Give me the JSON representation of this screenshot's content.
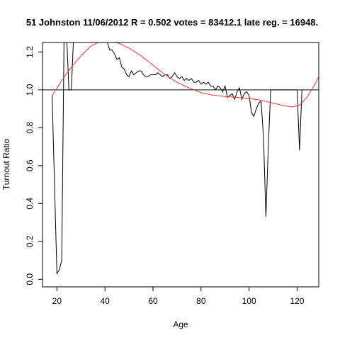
{
  "chart_data": {
    "type": "line",
    "title": "51 Johnston 11/06/2012 R = 0.502 votes = 83412.1 late reg. = 16948.",
    "xlabel": "Age",
    "ylabel": "Turnout Ratio",
    "xlim": [
      14,
      129
    ],
    "ylim": [
      -0.04,
      1.25
    ],
    "xticks": [
      20,
      40,
      60,
      80,
      100,
      120
    ],
    "yticks": [
      0.0,
      0.2,
      0.4,
      0.6,
      0.8,
      1.0,
      1.2
    ],
    "ytick_labels": [
      "0.0",
      "0.2",
      "0.4",
      "0.6",
      "0.8",
      "1.0",
      "1.2"
    ],
    "reference_line": {
      "y": 1.0,
      "color": "#000000"
    },
    "series": [
      {
        "kind": "observed",
        "color": "#000000",
        "x": [
          18,
          19,
          20,
          21,
          22,
          23,
          24,
          25,
          26,
          27,
          28,
          29,
          30,
          31,
          32,
          33,
          34,
          35,
          36,
          37,
          38,
          39,
          40,
          41,
          42,
          43,
          44,
          45,
          46,
          47,
          48,
          49,
          50,
          51,
          52,
          53,
          54,
          55,
          56,
          57,
          58,
          59,
          60,
          61,
          62,
          63,
          64,
          65,
          66,
          67,
          68,
          69,
          70,
          71,
          72,
          73,
          74,
          75,
          76,
          77,
          78,
          79,
          80,
          81,
          82,
          83,
          84,
          85,
          86,
          87,
          88,
          89,
          90,
          91,
          92,
          93,
          94,
          95,
          96,
          97,
          98,
          99,
          100,
          101,
          102,
          103,
          104,
          105,
          106,
          107,
          108,
          109,
          110,
          111,
          112,
          113,
          114,
          115,
          116,
          117,
          118,
          119,
          120,
          121,
          122
        ],
        "y": [
          0.97,
          0.5,
          0.03,
          0.05,
          0.1,
          1.3,
          1.3,
          1.0,
          1.0,
          1.3,
          1.3,
          1.3,
          1.3,
          1.3,
          1.3,
          1.3,
          1.3,
          1.3,
          1.3,
          1.3,
          1.3,
          1.3,
          1.3,
          1.25,
          1.21,
          1.21,
          1.19,
          1.16,
          1.17,
          1.12,
          1.11,
          1.08,
          1.07,
          1.1,
          1.08,
          1.09,
          1.1,
          1.1,
          1.08,
          1.07,
          1.07,
          1.08,
          1.08,
          1.08,
          1.09,
          1.08,
          1.07,
          1.08,
          1.08,
          1.06,
          1.07,
          1.09,
          1.07,
          1.06,
          1.07,
          1.05,
          1.06,
          1.05,
          1.06,
          1.04,
          1.04,
          1.05,
          1.03,
          1.04,
          1.03,
          1.04,
          1.02,
          1.02,
          1.0,
          1.02,
          1.01,
          0.99,
          1.02,
          0.96,
          0.97,
          0.98,
          0.95,
          0.99,
          1.01,
          0.95,
          0.98,
          0.99,
          0.97,
          0.88,
          0.86,
          0.9,
          0.93,
          0.94,
          0.75,
          0.33,
          0.7,
          1.0,
          1.0,
          1.0,
          1.0,
          1.0,
          1.0,
          1.0,
          1.0,
          1.0,
          1.0,
          1.0,
          1.0,
          0.68,
          1.0
        ]
      },
      {
        "kind": "fitted",
        "color": "#ff3333",
        "x": [
          18,
          22,
          26,
          30,
          34,
          38,
          42,
          46,
          50,
          55,
          60,
          65,
          70,
          75,
          80,
          85,
          90,
          95,
          100,
          105,
          110,
          115,
          118,
          121,
          124,
          127,
          129
        ],
        "y": [
          0.97,
          1.05,
          1.12,
          1.18,
          1.23,
          1.255,
          1.258,
          1.245,
          1.22,
          1.18,
          1.13,
          1.08,
          1.04,
          1.01,
          0.985,
          0.972,
          0.965,
          0.96,
          0.955,
          0.945,
          0.93,
          0.915,
          0.91,
          0.92,
          0.96,
          1.02,
          1.07
        ]
      }
    ]
  }
}
